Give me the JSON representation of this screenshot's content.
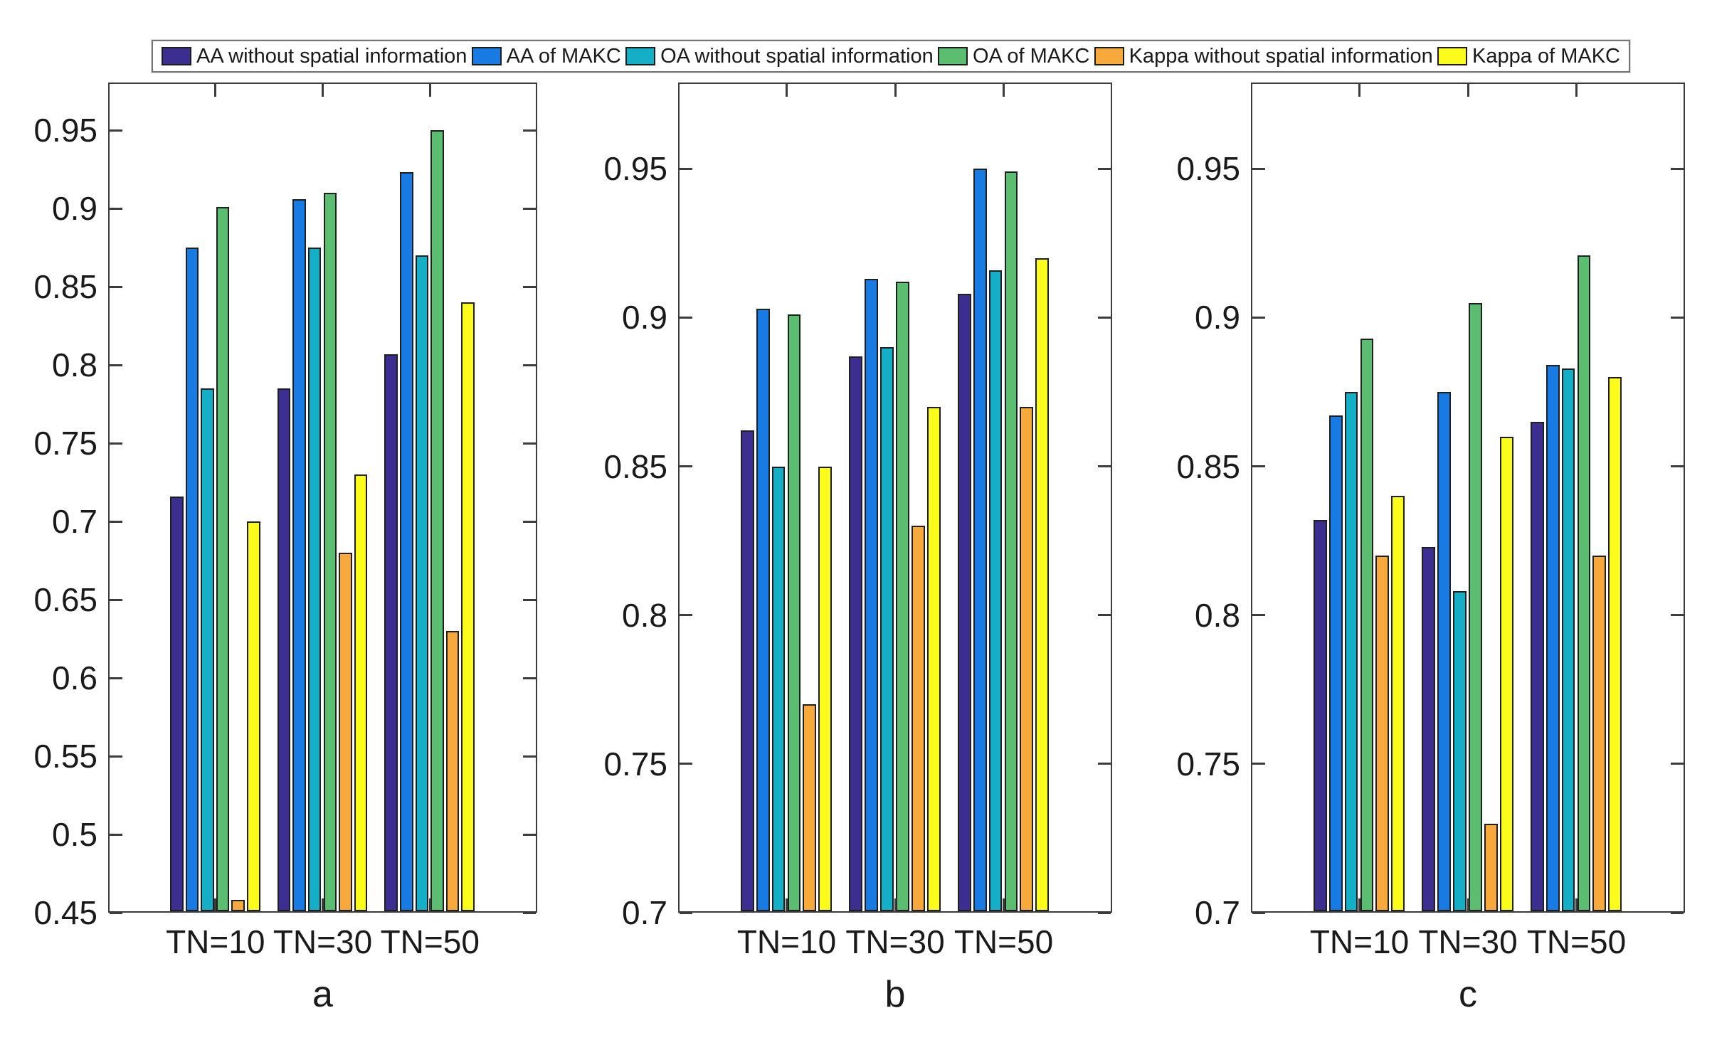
{
  "figure": {
    "background_color": "#ffffff",
    "axis_color": "#3c3c3c",
    "text_color": "#1a1a1a"
  },
  "legend": {
    "position": "top",
    "items": [
      {
        "label": "AA without spatial information",
        "color": "#3B2E90"
      },
      {
        "label": "AA of MAKC",
        "color": "#187BE4"
      },
      {
        "label": "OA without spatial information",
        "color": "#14AEC6"
      },
      {
        "label": "OA of MAKC",
        "color": "#5BBD6F"
      },
      {
        "label": "Kappa without spatial information",
        "color": "#F8A93C"
      },
      {
        "label": "Kappa of MAKC",
        "color": "#FBFB1C"
      }
    ]
  },
  "chart_data": {
    "type": "bar",
    "grid": false,
    "legend_position": "top",
    "categories": [
      "TN=10",
      "TN=30",
      "TN=50"
    ],
    "subplots": [
      {
        "label": "a",
        "ylim": [
          0.45,
          0.9805
        ],
        "ytick_labels": [
          "0.45",
          "0.5",
          "0.55",
          "0.6",
          "0.65",
          "0.7",
          "0.75",
          "0.8",
          "0.85",
          "0.9",
          "0.95"
        ],
        "ytick_values": [
          0.45,
          0.5,
          0.55,
          0.6,
          0.65,
          0.7,
          0.75,
          0.8,
          0.85,
          0.9,
          0.95
        ],
        "series": [
          {
            "name": "AA without spatial information",
            "values": [
              0.716,
              0.785,
              0.807
            ]
          },
          {
            "name": "AA of MAKC",
            "values": [
              0.875,
              0.906,
              0.923
            ]
          },
          {
            "name": "OA without spatial information",
            "values": [
              0.785,
              0.875,
              0.87
            ]
          },
          {
            "name": "OA of MAKC",
            "values": [
              0.901,
              0.91,
              0.95
            ]
          },
          {
            "name": "Kappa without spatial information",
            "values": [
              0.458,
              0.68,
              0.63
            ]
          },
          {
            "name": "Kappa of MAKC",
            "values": [
              0.7,
              0.73,
              0.84
            ]
          }
        ]
      },
      {
        "label": "b",
        "ylim": [
          0.7,
          0.979
        ],
        "ytick_labels": [
          "0.7",
          "0.75",
          "0.8",
          "0.85",
          "0.9",
          "0.95"
        ],
        "ytick_values": [
          0.7,
          0.75,
          0.8,
          0.85,
          0.9,
          0.95
        ],
        "series": [
          {
            "name": "AA without spatial information",
            "values": [
              0.862,
              0.887,
              0.908
            ]
          },
          {
            "name": "AA of MAKC",
            "values": [
              0.903,
              0.913,
              0.95
            ]
          },
          {
            "name": "OA without spatial information",
            "values": [
              0.85,
              0.89,
              0.916
            ]
          },
          {
            "name": "OA of MAKC",
            "values": [
              0.901,
              0.912,
              0.949
            ]
          },
          {
            "name": "Kappa without spatial information",
            "values": [
              0.77,
              0.83,
              0.87
            ]
          },
          {
            "name": "Kappa of MAKC",
            "values": [
              0.85,
              0.87,
              0.92
            ]
          }
        ]
      },
      {
        "label": "c",
        "ylim": [
          0.7,
          0.979
        ],
        "ytick_labels": [
          "0.7",
          "0.75",
          "0.8",
          "0.85",
          "0.9",
          "0.95"
        ],
        "ytick_values": [
          0.7,
          0.75,
          0.8,
          0.85,
          0.9,
          0.95
        ],
        "series": [
          {
            "name": "AA without spatial information",
            "values": [
              0.832,
              0.823,
              0.865
            ]
          },
          {
            "name": "AA of MAKC",
            "values": [
              0.867,
              0.875,
              0.884
            ]
          },
          {
            "name": "OA without spatial information",
            "values": [
              0.875,
              0.808,
              0.883
            ]
          },
          {
            "name": "OA of MAKC",
            "values": [
              0.893,
              0.905,
              0.921
            ]
          },
          {
            "name": "Kappa without spatial information",
            "values": [
              0.82,
              0.73,
              0.82
            ]
          },
          {
            "name": "Kappa of MAKC",
            "values": [
              0.84,
              0.86,
              0.88
            ]
          }
        ]
      }
    ]
  }
}
